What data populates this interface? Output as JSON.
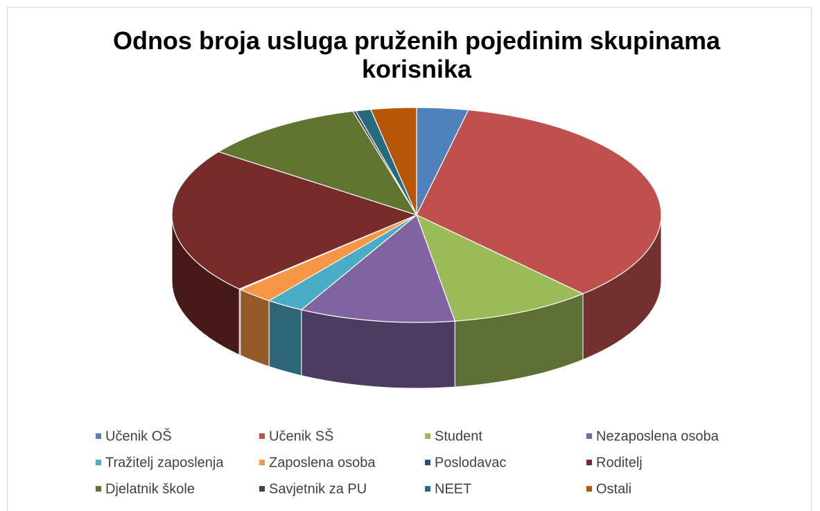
{
  "chart_data": {
    "type": "pie3d",
    "title": "Odnos broja usluga pruženih pojedinim skupinama korisnika",
    "categories": [
      "Učenik OŠ",
      "Učenik SŠ",
      "Student",
      "Nezaposlena osoba",
      "Tražitelj zaposlenja",
      "Zaposlena osoba",
      "Poslodavac",
      "Roditelj",
      "Djelatnik škole",
      "Savjetnik za PU",
      "NEET",
      "Ostali"
    ],
    "values": [
      3.4,
      34.7,
      9.4,
      10.3,
      2.5,
      2.5,
      0.1,
      22.1,
      10.8,
      0.2,
      1,
      3
    ],
    "colors": [
      "#4f81bd",
      "#c0504d",
      "#9bbb59",
      "#8064a2",
      "#4bacc6",
      "#f79646",
      "#2c4d75",
      "#772c2a",
      "#5f7530",
      "#4d3b62",
      "#276a7c",
      "#b65708"
    ],
    "legend": "bottom"
  }
}
